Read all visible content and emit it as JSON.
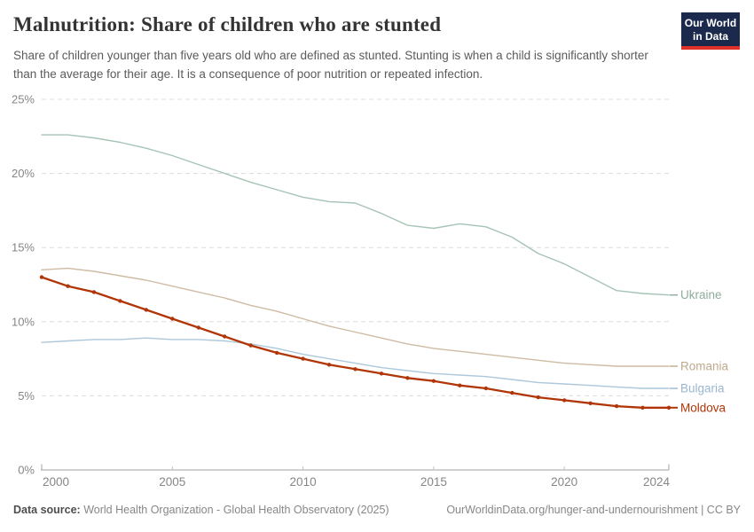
{
  "header": {
    "title": "Malnutrition: Share of children who are stunted",
    "subtitle": "Share of children younger than five years old who are defined as stunted. Stunting is when a child is significantly shorter than the average for their age. It is a consequence of poor nutrition or repeated infection.",
    "logo": {
      "line1": "Our World",
      "line2": "in Data"
    }
  },
  "footer": {
    "datasource_label": "Data source:",
    "datasource_value": "World Health Organization - Global Health Observatory (2025)",
    "link": "OurWorldinData.org/hunger-and-undernourishment",
    "separator": " | ",
    "license": "CC BY"
  },
  "brand": {
    "navy": "#1b2a4c",
    "red": "#e03128"
  },
  "chart_data": {
    "type": "line",
    "title": "Malnutrition: Share of children who are stunted",
    "y_unit": "%",
    "xlim": [
      2000,
      2024
    ],
    "ylim": [
      0,
      25
    ],
    "grid": "horizontal-dashed",
    "legend_position": "right-edge-labels",
    "axis_text_color": "#868686",
    "gridline_color": "#dcdcdc",
    "baseline_color": "#a3a3a3",
    "x": [
      2000,
      2001,
      2002,
      2003,
      2004,
      2005,
      2006,
      2007,
      2008,
      2009,
      2010,
      2011,
      2012,
      2013,
      2014,
      2015,
      2016,
      2017,
      2018,
      2019,
      2020,
      2021,
      2022,
      2023,
      2024
    ],
    "xticks": [
      {
        "value": 2000,
        "label": "2000"
      },
      {
        "value": 2005,
        "label": "2005"
      },
      {
        "value": 2010,
        "label": "2010"
      },
      {
        "value": 2015,
        "label": "2015"
      },
      {
        "value": 2020,
        "label": "2020"
      },
      {
        "value": 2024,
        "label": "2024"
      }
    ],
    "yticks": [
      {
        "value": 0,
        "label": "0%"
      },
      {
        "value": 5,
        "label": "5%"
      },
      {
        "value": 10,
        "label": "10%"
      },
      {
        "value": 15,
        "label": "15%"
      },
      {
        "value": 20,
        "label": "20%"
      },
      {
        "value": 25,
        "label": "25%"
      }
    ],
    "series": [
      {
        "name": "Ukraine",
        "color": "#a6c4b5",
        "label_color": "#8fab9e",
        "width": 1.4,
        "markers": false,
        "values": [
          22.6,
          22.6,
          22.4,
          22.1,
          21.7,
          21.2,
          20.6,
          20.0,
          19.4,
          18.9,
          18.4,
          18.1,
          18.0,
          17.3,
          16.5,
          16.3,
          16.6,
          16.4,
          15.7,
          14.6,
          13.9,
          13.0,
          12.1,
          11.9,
          11.8
        ]
      },
      {
        "name": "Romania",
        "color": "#cfbba3",
        "label_color": "#bfa98e",
        "width": 1.4,
        "markers": false,
        "values": [
          13.5,
          13.6,
          13.4,
          13.1,
          12.8,
          12.4,
          12.0,
          11.6,
          11.1,
          10.7,
          10.2,
          9.7,
          9.3,
          8.9,
          8.5,
          8.2,
          8.0,
          7.8,
          7.6,
          7.4,
          7.2,
          7.1,
          7.0,
          7.0,
          7.0
        ]
      },
      {
        "name": "Bulgaria",
        "color": "#adc7db",
        "label_color": "#9ab6cf",
        "width": 1.4,
        "markers": false,
        "values": [
          8.6,
          8.7,
          8.8,
          8.8,
          8.9,
          8.8,
          8.8,
          8.7,
          8.5,
          8.2,
          7.8,
          7.5,
          7.2,
          6.9,
          6.7,
          6.5,
          6.4,
          6.3,
          6.1,
          5.9,
          5.8,
          5.7,
          5.6,
          5.5,
          5.5
        ]
      },
      {
        "name": "Moldova",
        "color": "#b13507",
        "label_color": "#b13507",
        "width": 2.3,
        "markers": true,
        "values": [
          13.0,
          12.4,
          12.0,
          11.4,
          10.8,
          10.2,
          9.6,
          9.0,
          8.4,
          7.9,
          7.5,
          7.1,
          6.8,
          6.5,
          6.2,
          6.0,
          5.7,
          5.5,
          5.2,
          4.9,
          4.7,
          4.5,
          4.3,
          4.2,
          4.2
        ]
      }
    ]
  }
}
